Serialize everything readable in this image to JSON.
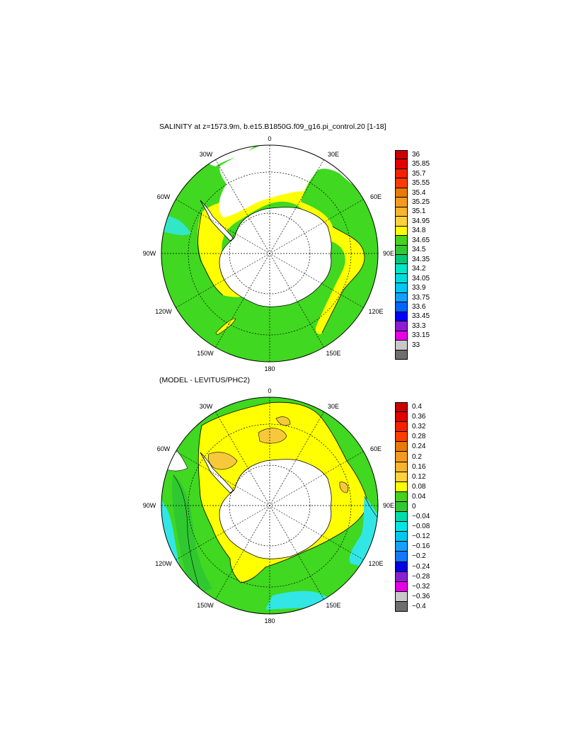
{
  "panels": [
    {
      "title": "SALINITY at z=1573.9m, b.e15.B1850G.f09_g16.pi_control.20 [1-18]",
      "lon_labels": {
        "top": "0",
        "ur": "30E",
        "r1": "60E",
        "r": "90E",
        "lr": "120E",
        "br": "150E",
        "bottom": "180",
        "bl": "150W",
        "l2": "120W",
        "l": "90W",
        "l1": "60W",
        "ul": "30W"
      },
      "colorbar": {
        "labels": [
          "36",
          "35.85",
          "35.7",
          "35.55",
          "35.4",
          "35.25",
          "35.1",
          "34.95",
          "34.8",
          "34.65",
          "34.5",
          "34.35",
          "34.2",
          "34.05",
          "33.9",
          "33.75",
          "33.6",
          "33.45",
          "33.3",
          "33.15",
          "33"
        ],
        "colors": [
          "#c80000",
          "#e00000",
          "#f52000",
          "#ff3c00",
          "#e87b00",
          "#f59a20",
          "#f7b42e",
          "#ffd23c",
          "#ffff00",
          "#46d21e",
          "#32c832",
          "#00c878",
          "#00e6c8",
          "#00dcdc",
          "#00c8f0",
          "#14a0ff",
          "#0064ff",
          "#0000ff",
          "#8c1ed2",
          "#e600e6",
          "#c8c8c8",
          "#6e6e6e"
        ]
      },
      "colors": {
        "ocean": "#40d820",
        "band": "#ffff00",
        "cyan": "#32e6c8",
        "land": "#ffffff"
      }
    },
    {
      "title": "(MODEL - LEVITUS/PHC2)",
      "lon_labels": {
        "top": "0",
        "ur": "30E",
        "r1": "60E",
        "r": "90E",
        "lr": "120E",
        "br": "150E",
        "bottom": "180",
        "bl": "150W",
        "l2": "120W",
        "l": "90W",
        "l1": "60W",
        "ul": "30W"
      },
      "colorbar": {
        "labels": [
          "0.4",
          "0.36",
          "0.32",
          "0.28",
          "0.24",
          "0.2",
          "0.16",
          "0.12",
          "0.08",
          "0.04",
          "0",
          "−0.04",
          "−0.08",
          "−0.12",
          "−0.16",
          "−0.2",
          "−0.24",
          "−0.28",
          "−0.32",
          "−0.36",
          "−0.4"
        ],
        "colors": [
          "#c80000",
          "#e00000",
          "#f52000",
          "#ff3c00",
          "#e87b00",
          "#f59a20",
          "#f7b42e",
          "#ffd23c",
          "#ffff00",
          "#46d21e",
          "#32c832",
          "#00dcaa",
          "#00e6e6",
          "#00c8f0",
          "#14a0ff",
          "#1478ff",
          "#0000e6",
          "#8c1ed2",
          "#e600e6",
          "#c8c8c8",
          "#6e6e6e"
        ]
      },
      "colors": {
        "ocean": "#ffff00",
        "outer": "#40d820",
        "cyan": "#32e6e6",
        "orange": "#f7c83c",
        "land": "#ffffff"
      }
    }
  ]
}
